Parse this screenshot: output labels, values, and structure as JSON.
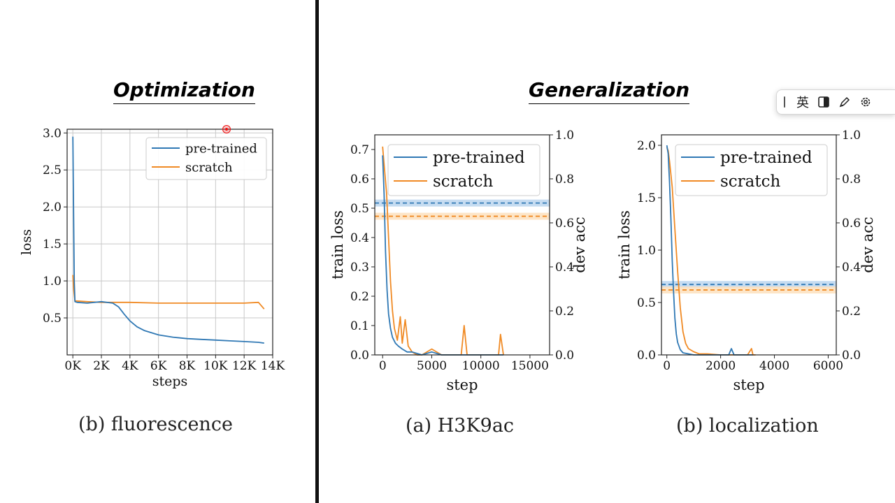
{
  "headings": {
    "optimization": "Optimization",
    "generalization": "Generalization"
  },
  "captions": {
    "fluorescence": "(b) fluorescence",
    "h3k9ac": "(a) H3K9ac",
    "localization": "(b) localization"
  },
  "toolbar": {
    "lang": "英"
  },
  "colors": {
    "pretrained": "#2f78b4",
    "scratch": "#f08a24"
  },
  "chart_data": [
    {
      "type": "line",
      "id": "fluorescence",
      "xlabel": "steps",
      "ylabel": "loss",
      "xlim": [
        -400,
        14000
      ],
      "ylim": [
        0,
        3.05
      ],
      "xticks": [
        0,
        2000,
        4000,
        6000,
        8000,
        10000,
        12000,
        14000
      ],
      "xtick_labels": [
        "0K",
        "2K",
        "4K",
        "6K",
        "8K",
        "10K",
        "12K",
        "14K"
      ],
      "yticks": [
        0.5,
        1.0,
        1.5,
        2.0,
        2.5,
        3.0
      ],
      "ytick_labels": [
        "0.5",
        "1.0",
        "1.5",
        "2.0",
        "2.5",
        "3.0"
      ],
      "grid": true,
      "legend": "top-right",
      "series": [
        {
          "name": "pre-trained",
          "x": [
            0,
            100,
            150,
            300,
            1000,
            2000,
            2800,
            3200,
            3600,
            4000,
            4500,
            5000,
            6000,
            7000,
            8000,
            9000,
            10000,
            11000,
            12000,
            13000,
            13400
          ],
          "y": [
            2.95,
            1.0,
            0.72,
            0.71,
            0.7,
            0.72,
            0.7,
            0.65,
            0.55,
            0.46,
            0.38,
            0.33,
            0.27,
            0.24,
            0.22,
            0.21,
            0.2,
            0.19,
            0.18,
            0.17,
            0.16
          ]
        },
        {
          "name": "scratch",
          "x": [
            0,
            50,
            150,
            1000,
            2000,
            4000,
            6000,
            8000,
            10000,
            12000,
            13000,
            13400
          ],
          "y": [
            1.08,
            0.9,
            0.73,
            0.72,
            0.71,
            0.71,
            0.7,
            0.7,
            0.7,
            0.7,
            0.71,
            0.62
          ]
        }
      ]
    },
    {
      "type": "line",
      "id": "h3k9ac",
      "xlabel": "step",
      "ylabel": "train loss",
      "ylabel_right": "dev acc",
      "xlim": [
        -800,
        17000
      ],
      "ylim": [
        0,
        0.75
      ],
      "ylim_right": [
        0,
        1.0
      ],
      "xticks": [
        0,
        5000,
        10000,
        15000
      ],
      "xtick_labels": [
        "0",
        "5000",
        "10000",
        "15000"
      ],
      "yticks": [
        0.0,
        0.1,
        0.2,
        0.3,
        0.4,
        0.5,
        0.6,
        0.7
      ],
      "ytick_labels": [
        "0.0",
        "0.1",
        "0.2",
        "0.3",
        "0.4",
        "0.5",
        "0.6",
        "0.7"
      ],
      "yticks_right": [
        0.0,
        0.2,
        0.4,
        0.6,
        0.8,
        1.0
      ],
      "ytick_right_labels": [
        "0.0",
        "0.2",
        "0.4",
        "0.6",
        "0.8",
        "1.0"
      ],
      "grid": false,
      "legend": "top-right",
      "dev_acc": {
        "pre-trained": 0.69,
        "scratch": 0.63
      },
      "series": [
        {
          "name": "pre-trained",
          "x": [
            0,
            150,
            300,
            450,
            600,
            800,
            1000,
            1300,
            1600,
            2000,
            2500,
            3000,
            4000,
            5000,
            6000,
            7000,
            8000,
            9000,
            10000,
            11000,
            12000,
            12300
          ],
          "y": [
            0.68,
            0.55,
            0.35,
            0.22,
            0.14,
            0.09,
            0.06,
            0.04,
            0.03,
            0.02,
            0.01,
            0.01,
            0.0,
            0.01,
            0.0,
            0.0,
            0.0,
            0.0,
            0.0,
            0.0,
            0.0,
            0.0
          ]
        },
        {
          "name": "scratch",
          "x": [
            0,
            200,
            400,
            600,
            800,
            1000,
            1200,
            1500,
            1800,
            2000,
            2300,
            2600,
            3000,
            3500,
            4000,
            5000,
            6000,
            7000,
            8000,
            8300,
            8600,
            9000,
            10000,
            11000,
            11800,
            12000,
            12300
          ],
          "y": [
            0.71,
            0.63,
            0.55,
            0.4,
            0.25,
            0.15,
            0.09,
            0.05,
            0.13,
            0.04,
            0.12,
            0.03,
            0.01,
            0.0,
            0.0,
            0.02,
            0.0,
            0.0,
            0.0,
            0.1,
            0.0,
            0.0,
            0.0,
            0.0,
            0.0,
            0.07,
            0.0
          ]
        }
      ]
    },
    {
      "type": "line",
      "id": "localization",
      "xlabel": "step",
      "ylabel": "train loss",
      "ylabel_right": "dev acc",
      "xlim": [
        -200,
        6300
      ],
      "ylim": [
        0,
        2.1
      ],
      "ylim_right": [
        0,
        1.0
      ],
      "xticks": [
        0,
        2000,
        4000,
        6000
      ],
      "xtick_labels": [
        "0",
        "2000",
        "4000",
        "6000"
      ],
      "yticks": [
        0.0,
        0.5,
        1.0,
        1.5,
        2.0
      ],
      "ytick_labels": [
        "0.0",
        "0.5",
        "1.0",
        "1.5",
        "2.0"
      ],
      "yticks_right": [
        0.0,
        0.2,
        0.4,
        0.6,
        0.8,
        1.0
      ],
      "ytick_right_labels": [
        "0.0",
        "0.2",
        "0.4",
        "0.6",
        "0.8",
        "1.0"
      ],
      "grid": false,
      "legend": "top-right",
      "dev_acc": {
        "pre-trained": 0.32,
        "scratch": 0.295
      },
      "series": [
        {
          "name": "pre-trained",
          "x": [
            0,
            50,
            100,
            150,
            200,
            250,
            300,
            350,
            400,
            500,
            600,
            800,
            1000,
            1500,
            2000,
            2300,
            2400,
            2500,
            3000,
            3200
          ],
          "y": [
            2.0,
            1.92,
            1.65,
            1.3,
            0.9,
            0.6,
            0.35,
            0.2,
            0.12,
            0.05,
            0.02,
            0.01,
            0.0,
            0.0,
            0.0,
            0.0,
            0.06,
            0.0,
            0.0,
            0.0
          ]
        },
        {
          "name": "scratch",
          "x": [
            0,
            50,
            100,
            200,
            300,
            400,
            500,
            600,
            700,
            800,
            1000,
            1200,
            1500,
            2000,
            2500,
            3000,
            3150,
            3200,
            3300
          ],
          "y": [
            1.98,
            1.95,
            1.85,
            1.6,
            1.2,
            0.8,
            0.45,
            0.22,
            0.11,
            0.06,
            0.03,
            0.01,
            0.01,
            0.0,
            0.0,
            0.0,
            0.06,
            0.0,
            0.0
          ]
        }
      ]
    }
  ]
}
